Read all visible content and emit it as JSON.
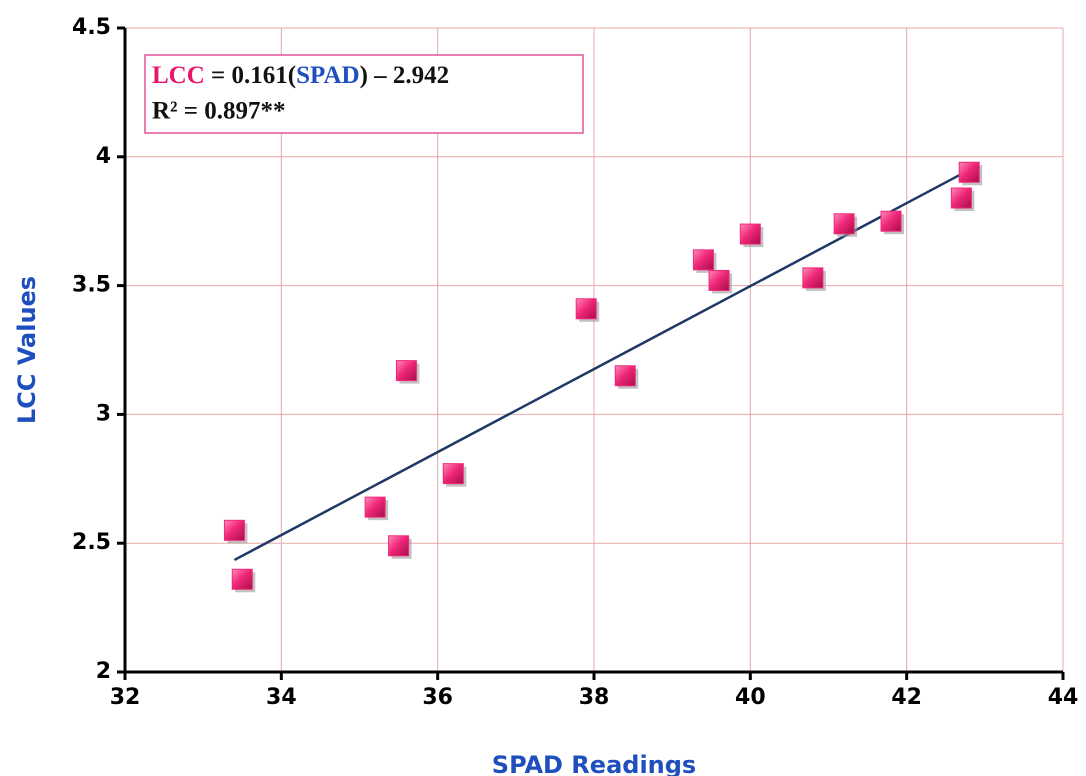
{
  "chart_data": {
    "type": "scatter",
    "xlabel": "SPAD Readings",
    "ylabel": "LCC Values",
    "x": [
      33.4,
      33.5,
      35.2,
      35.5,
      35.6,
      36.2,
      37.9,
      38.4,
      39.4,
      39.6,
      40.0,
      40.8,
      41.2,
      41.8,
      42.7,
      42.8
    ],
    "values": [
      2.55,
      2.36,
      2.64,
      2.49,
      3.17,
      2.77,
      3.41,
      3.15,
      3.6,
      3.52,
      3.7,
      3.53,
      3.74,
      3.75,
      3.84,
      3.94
    ],
    "color": "#f0287a",
    "trendline": {
      "x": [
        33.4,
        42.8
      ],
      "y": [
        2.435,
        3.949
      ],
      "color": "#1f3864"
    },
    "annotation": {
      "equation": [
        "LCC",
        " = 0.161(",
        "SPAD",
        ") – 2.942"
      ],
      "equation_colors": [
        "#e8156a",
        "#111111",
        "#1f4fbf",
        "#111111"
      ],
      "r2": "R² = 0.897**"
    },
    "xlim": [
      32,
      44
    ],
    "xticks": [
      32,
      34,
      36,
      38,
      40,
      42,
      44
    ],
    "ylim": [
      2,
      4.5
    ],
    "yticks": [
      2,
      2.5,
      3,
      3.5,
      4,
      4.5
    ],
    "grid": true
  }
}
